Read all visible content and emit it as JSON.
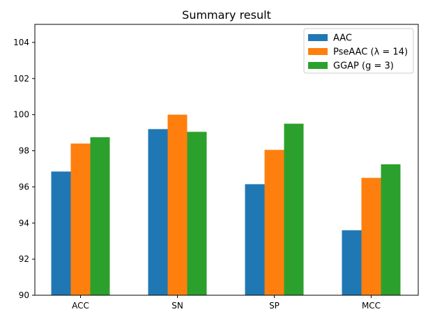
{
  "chart_data": {
    "type": "bar",
    "title": "Summary result",
    "xlabel": "",
    "ylabel": "",
    "categories": [
      "ACC",
      "SN",
      "SP",
      "MCC"
    ],
    "series": [
      {
        "name": "AAC",
        "color": "#1f77b4",
        "values": [
          96.85,
          99.2,
          96.15,
          93.6
        ]
      },
      {
        "name": "PseAAC (λ = 14)",
        "color": "#ff7f0e",
        "values": [
          98.4,
          100.0,
          98.05,
          96.5
        ]
      },
      {
        "name": "GGAP (g = 3)",
        "color": "#2ca02c",
        "values": [
          98.75,
          99.05,
          99.5,
          97.25
        ]
      }
    ],
    "ylim": [
      90,
      105
    ],
    "yticks": [
      90,
      92,
      94,
      96,
      98,
      100,
      102,
      104
    ],
    "grid": false,
    "legend_position": "top-right"
  }
}
